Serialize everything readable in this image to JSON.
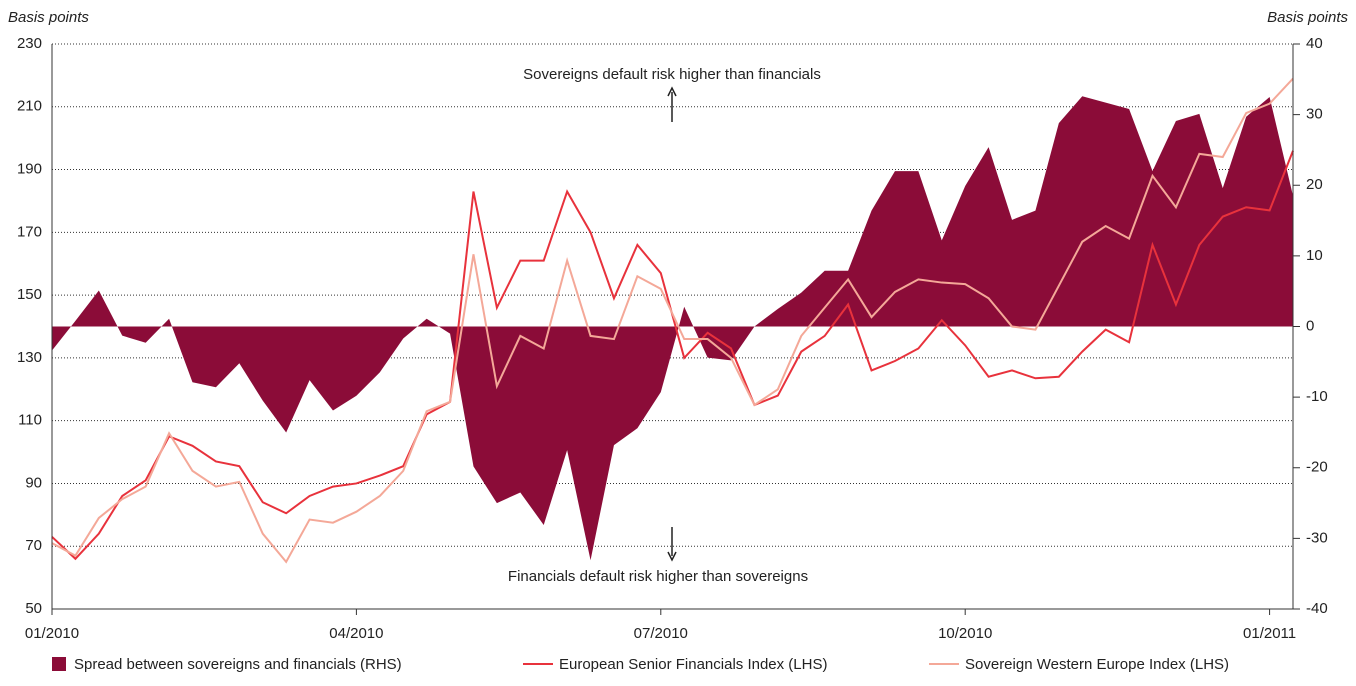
{
  "chart_data": {
    "type": "line",
    "y_label": "Basis points",
    "y2_label": "Basis points",
    "annotations": [
      "Sovereigns default risk higher than financials",
      "Financials default risk higher than sovereigns"
    ],
    "x": [
      0,
      1,
      2,
      3,
      4,
      5,
      6,
      7,
      8,
      9,
      10,
      11,
      12,
      13,
      14,
      15,
      16,
      17,
      18,
      19,
      20,
      21,
      22,
      23,
      24,
      25,
      26,
      27,
      28,
      29,
      30,
      31,
      32,
      33,
      34,
      35,
      36,
      37,
      38,
      39,
      40,
      41,
      42,
      43,
      44,
      45,
      46,
      47,
      48,
      49,
      50,
      51,
      52,
      53
    ],
    "xlim": [
      0,
      53
    ],
    "xticks": [
      {
        "value": 0,
        "label": "01/2010"
      },
      {
        "value": 13,
        "label": "04/2010"
      },
      {
        "value": 26,
        "label": "07/2010"
      },
      {
        "value": 39,
        "label": "10/2010"
      },
      {
        "value": 52,
        "label": "01/2011"
      }
    ],
    "ylim": [
      50,
      230
    ],
    "yticks": [
      50,
      70,
      90,
      110,
      130,
      150,
      170,
      190,
      210,
      230
    ],
    "y2lim": [
      -40,
      40
    ],
    "y2ticks": [
      -40,
      -30,
      -20,
      -10,
      0,
      10,
      20,
      30,
      40
    ],
    "grid": true,
    "series": [
      {
        "name": "Spread between sovereigns and financials (RHS)",
        "color": "#8b0c38",
        "axis": "y2",
        "kind": "area",
        "values": [
          -3.4,
          0.8,
          5.1,
          -1.3,
          -2.3,
          1.1,
          -7.9,
          -8.6,
          -5.2,
          -10.5,
          -15.0,
          -7.6,
          -11.9,
          -9.8,
          -6.5,
          -1.7,
          1.1,
          -1.0,
          -19.8,
          -25.0,
          -23.5,
          -28.1,
          -17.5,
          -33.1,
          -16.8,
          -14.4,
          -9.3,
          2.8,
          -4.4,
          -4.8,
          0,
          2.5,
          4.8,
          7.9,
          7.9,
          16.4,
          22.0,
          22.0,
          12.2,
          19.9,
          25.4,
          15.1,
          16.4,
          28.8,
          32.6,
          31.7,
          30.8,
          22.0,
          29.1,
          30.1,
          19.6,
          29.7,
          32.5,
          18.5
        ]
      },
      {
        "name": "European Senior Financials Index (LHS)",
        "color": "#e8323c",
        "axis": "y",
        "kind": "line",
        "values": [
          73,
          66,
          74,
          86,
          91,
          105,
          102,
          97,
          95.5,
          84,
          80.5,
          86,
          89,
          90,
          92.5,
          95.5,
          112,
          116,
          183,
          146,
          161,
          161,
          183,
          170,
          149,
          166,
          157,
          130,
          138,
          133,
          115,
          118,
          132,
          137,
          147,
          126,
          129,
          133,
          142,
          134,
          124,
          126,
          123.5,
          124,
          132,
          139,
          135,
          166,
          147,
          166,
          175,
          178,
          177,
          196
        ]
      },
      {
        "name": "Sovereign Western Europe Index (LHS)",
        "color": "#f4a898",
        "axis": "y",
        "kind": "line",
        "values": [
          71,
          67,
          79,
          85,
          89,
          106,
          94,
          89,
          90.5,
          74,
          65,
          78.5,
          77.5,
          81,
          86,
          94,
          113,
          116,
          163,
          121,
          137,
          133,
          161,
          137,
          136,
          156,
          152,
          136,
          136,
          130,
          115,
          120,
          137,
          146,
          155,
          143,
          151,
          155,
          154,
          153.5,
          149,
          140,
          139,
          153,
          167,
          172,
          168,
          188,
          178,
          195,
          194,
          208,
          211,
          219
        ]
      }
    ]
  }
}
